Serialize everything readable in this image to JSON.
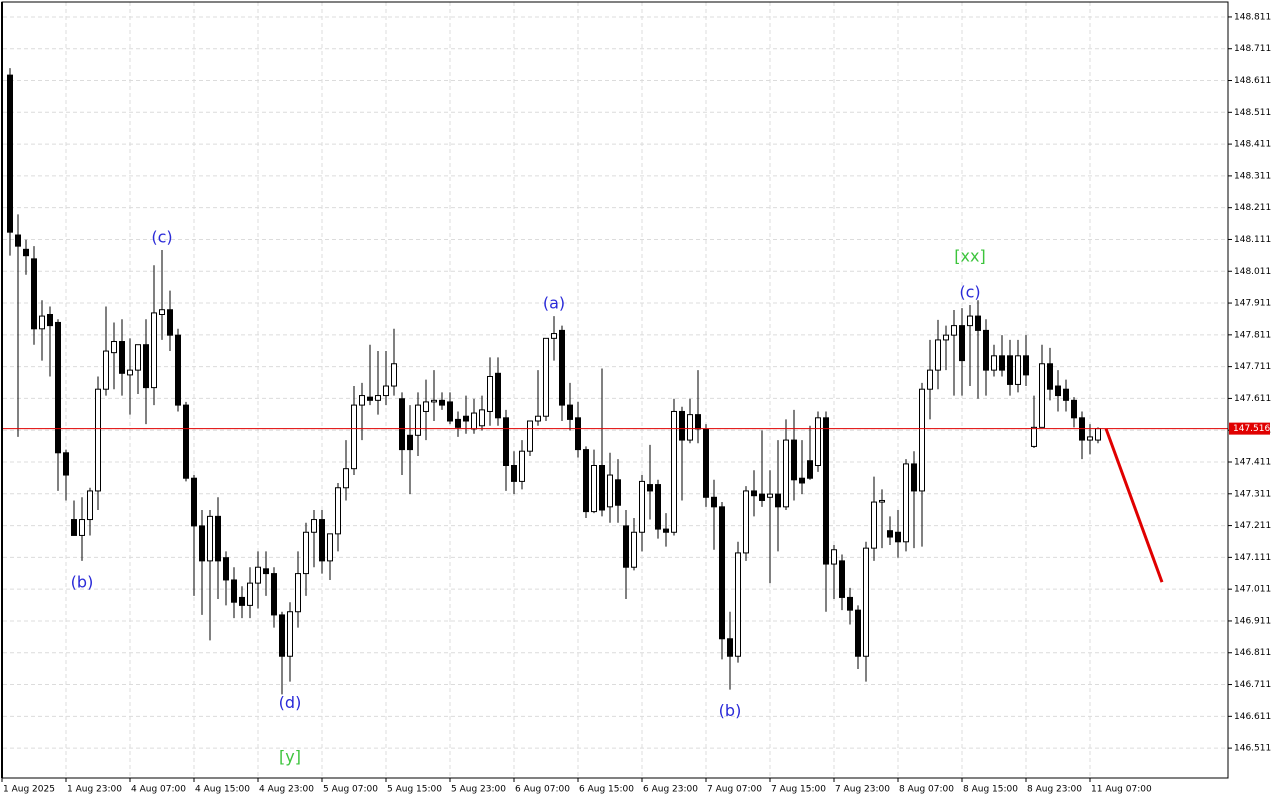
{
  "chart_data": {
    "type": "candlestick",
    "ylim": [
      146.417,
      148.858
    ],
    "yticks": [
      146.511,
      146.611,
      146.711,
      146.811,
      146.911,
      147.011,
      147.111,
      147.211,
      147.311,
      147.411,
      147.511,
      147.611,
      147.711,
      147.811,
      147.911,
      148.011,
      148.111,
      148.211,
      148.311,
      148.411,
      148.511,
      148.611,
      148.711,
      148.811
    ],
    "x_labels": [
      "1 Aug 2025",
      "1 Aug 23:00",
      "4 Aug 07:00",
      "4 Aug 15:00",
      "4 Aug 23:00",
      "5 Aug 07:00",
      "5 Aug 15:00",
      "5 Aug 23:00",
      "6 Aug 07:00",
      "6 Aug 15:00",
      "6 Aug 23:00",
      "7 Aug 07:00",
      "7 Aug 15:00",
      "7 Aug 23:00",
      "8 Aug 07:00",
      "8 Aug 15:00",
      "8 Aug 23:00",
      "11 Aug 07:00"
    ],
    "grid": true,
    "open": [
      148.628,
      148.125,
      148.08,
      148.05,
      147.83,
      147.875,
      147.85,
      147.44,
      147.23,
      147.18,
      147.23,
      147.32,
      147.64,
      147.755,
      147.79,
      147.685,
      147.7,
      147.78,
      147.645,
      147.875,
      147.89,
      147.81,
      147.59,
      147.36,
      147.21,
      147.1,
      147.24,
      147.11,
      147.04,
      146.985,
      146.96,
      147.03,
      147.075,
      147.06,
      146.93,
      146.8,
      146.94,
      147.06,
      147.19,
      147.23,
      147.1,
      147.185,
      147.33,
      147.39,
      147.59,
      147.615,
      147.605,
      147.62,
      147.65,
      147.61,
      147.495,
      147.495,
      147.57,
      147.6,
      147.605,
      147.6,
      147.545,
      147.555,
      147.515,
      147.525,
      147.57,
      147.69,
      147.55,
      147.4,
      147.35,
      147.445,
      147.54,
      147.555,
      147.8,
      147.825,
      147.59,
      147.55,
      147.45,
      147.255,
      147.4,
      147.27,
      147.355,
      147.21,
      147.08,
      147.19,
      147.34,
      147.34,
      147.2,
      147.19,
      147.57,
      147.48,
      147.56,
      147.515,
      147.3,
      147.27,
      146.855,
      146.8,
      147.125,
      147.32,
      147.31,
      147.3,
      147.31,
      147.27,
      147.48,
      147.36,
      147.415,
      147.4,
      147.55,
      147.09,
      147.1,
      146.985,
      146.945,
      146.8,
      147.14,
      147.285,
      147.195,
      147.19,
      147.16,
      147.405,
      147.32,
      147.64,
      147.7,
      147.795,
      147.81,
      147.84,
      147.84,
      147.87,
      147.825,
      147.7,
      147.745,
      147.745,
      147.655,
      147.745,
      147.46,
      147.52,
      147.72,
      147.65,
      147.64,
      147.605,
      147.55,
      147.48,
      147.48
    ],
    "high": [
      148.65,
      148.19,
      148.11,
      148.09,
      147.92,
      147.9,
      147.86,
      147.45,
      147.29,
      147.3,
      147.33,
      147.68,
      147.9,
      147.85,
      147.86,
      147.8,
      147.78,
      147.86,
      148.03,
      148.078,
      147.95,
      147.83,
      147.6,
      147.37,
      147.26,
      147.26,
      147.3,
      147.13,
      147.08,
      147.02,
      147.08,
      147.13,
      147.13,
      147.08,
      146.94,
      146.97,
      147.13,
      147.22,
      147.26,
      147.26,
      147.17,
      147.345,
      147.48,
      147.65,
      147.66,
      147.78,
      147.76,
      147.76,
      147.83,
      147.63,
      147.59,
      147.63,
      147.67,
      147.7,
      147.63,
      147.63,
      147.57,
      147.62,
      147.61,
      147.62,
      147.74,
      147.74,
      147.575,
      147.445,
      147.48,
      147.54,
      147.7,
      147.8,
      147.87,
      147.84,
      147.66,
      147.6,
      147.46,
      147.45,
      147.705,
      147.44,
      147.42,
      147.26,
      147.235,
      147.37,
      147.465,
      147.355,
      147.25,
      147.61,
      147.585,
      147.61,
      147.7,
      147.53,
      147.355,
      147.285,
      146.94,
      147.16,
      147.335,
      147.385,
      147.51,
      147.385,
      147.48,
      147.545,
      147.575,
      147.48,
      147.525,
      147.57,
      147.57,
      147.15,
      147.12,
      147.015,
      146.96,
      147.16,
      147.365,
      147.325,
      147.24,
      147.26,
      147.42,
      147.445,
      147.66,
      147.795,
      147.858,
      147.84,
      147.889,
      147.895,
      147.905,
      147.92,
      147.86,
      147.78,
      147.81,
      147.795,
      147.795,
      147.81,
      147.62,
      147.78,
      147.77,
      147.7,
      147.67,
      147.615,
      147.57,
      147.53,
      147.52
    ],
    "low": [
      148.06,
      147.49,
      148.0,
      147.78,
      147.73,
      147.68,
      147.32,
      147.29,
      147.18,
      147.1,
      147.18,
      147.26,
      147.62,
      147.64,
      147.62,
      147.56,
      147.625,
      147.53,
      147.59,
      147.795,
      147.76,
      147.57,
      147.35,
      146.99,
      146.93,
      146.85,
      146.98,
      146.96,
      146.92,
      146.92,
      146.92,
      146.95,
      146.99,
      146.89,
      146.68,
      146.72,
      146.89,
      146.99,
      147.08,
      147.06,
      147.04,
      147.13,
      147.29,
      147.37,
      147.48,
      147.59,
      147.56,
      147.59,
      147.62,
      147.37,
      147.31,
      147.43,
      147.48,
      147.54,
      147.575,
      147.53,
      147.49,
      147.5,
      147.5,
      147.51,
      147.525,
      147.525,
      147.32,
      147.31,
      147.325,
      147.43,
      147.525,
      147.54,
      147.73,
      147.54,
      147.51,
      147.425,
      147.235,
      147.25,
      147.24,
      147.22,
      147.22,
      146.98,
      147.07,
      147.13,
      147.23,
      147.17,
      147.145,
      147.18,
      147.29,
      147.47,
      147.47,
      147.27,
      147.135,
      146.79,
      146.695,
      146.78,
      147.1,
      147.24,
      147.27,
      147.03,
      147.13,
      147.26,
      147.29,
      147.31,
      147.355,
      147.38,
      146.94,
      146.98,
      146.945,
      146.9,
      146.76,
      146.72,
      147.1,
      147.14,
      147.15,
      147.11,
      147.13,
      147.14,
      147.145,
      147.545,
      147.64,
      147.7,
      147.62,
      147.62,
      147.65,
      147.61,
      147.62,
      147.68,
      147.68,
      147.62,
      147.63,
      147.65,
      147.455,
      147.52,
      147.605,
      147.57,
      147.57,
      147.52,
      147.42,
      147.435,
      147.47
    ],
    "close": [
      148.134,
      148.09,
      148.06,
      147.83,
      147.87,
      147.84,
      147.44,
      147.37,
      147.18,
      147.23,
      147.32,
      147.64,
      147.76,
      147.79,
      147.69,
      147.7,
      147.78,
      147.645,
      147.88,
      147.89,
      147.81,
      147.59,
      147.36,
      147.21,
      147.1,
      147.24,
      147.1,
      147.04,
      146.97,
      146.96,
      147.03,
      147.08,
      147.06,
      146.93,
      146.8,
      146.94,
      147.06,
      147.19,
      147.23,
      147.1,
      147.185,
      147.33,
      147.39,
      147.59,
      147.62,
      147.605,
      147.62,
      147.65,
      147.72,
      147.45,
      147.45,
      147.59,
      147.6,
      147.605,
      147.59,
      147.54,
      147.52,
      147.54,
      147.565,
      147.575,
      147.68,
      147.55,
      147.4,
      147.35,
      147.445,
      147.54,
      147.555,
      147.8,
      147.815,
      147.59,
      147.545,
      147.45,
      147.255,
      147.4,
      147.26,
      147.37,
      147.275,
      147.08,
      147.19,
      147.35,
      147.32,
      147.2,
      147.19,
      147.57,
      147.48,
      147.56,
      147.515,
      147.3,
      147.27,
      146.855,
      146.8,
      147.125,
      147.32,
      147.305,
      147.29,
      147.31,
      147.27,
      147.48,
      147.355,
      147.345,
      147.36,
      147.55,
      147.09,
      147.135,
      146.985,
      146.945,
      146.8,
      147.14,
      147.285,
      147.29,
      147.175,
      147.16,
      147.405,
      147.32,
      147.64,
      147.7,
      147.795,
      147.81,
      147.84,
      147.73,
      147.87,
      147.825,
      147.7,
      147.745,
      147.7,
      147.655,
      147.745,
      147.685,
      147.52,
      147.72,
      147.64,
      147.62,
      147.605,
      147.55,
      147.48,
      147.49,
      147.516
    ],
    "current_price": {
      "value": 147.516,
      "color": "#e00000"
    },
    "forecast": {
      "values": [
        147.516,
        147.033
      ],
      "color": "#e00000"
    },
    "annotations": [
      {
        "text": "(b)",
        "candle": 9,
        "side": "below",
        "color": "#2a2ad8"
      },
      {
        "text": "(c)",
        "candle": 19,
        "side": "above",
        "color": "#2a2ad8"
      },
      {
        "text": "(d)",
        "candle": 35,
        "side": "below",
        "color": "#2a2ad8"
      },
      {
        "text": "[y]",
        "candle": 35,
        "side": "below",
        "color": "#3cc43c"
      },
      {
        "text": "(a)",
        "candle": 68,
        "side": "above",
        "color": "#2a2ad8"
      },
      {
        "text": "(b)",
        "candle": 90,
        "side": "below",
        "color": "#2a2ad8"
      },
      {
        "text": "(c)",
        "candle": 120,
        "side": "above",
        "color": "#2a2ad8"
      },
      {
        "text": "[xx]",
        "candle": 120,
        "side": "above",
        "color": "#3cc43c"
      }
    ]
  }
}
